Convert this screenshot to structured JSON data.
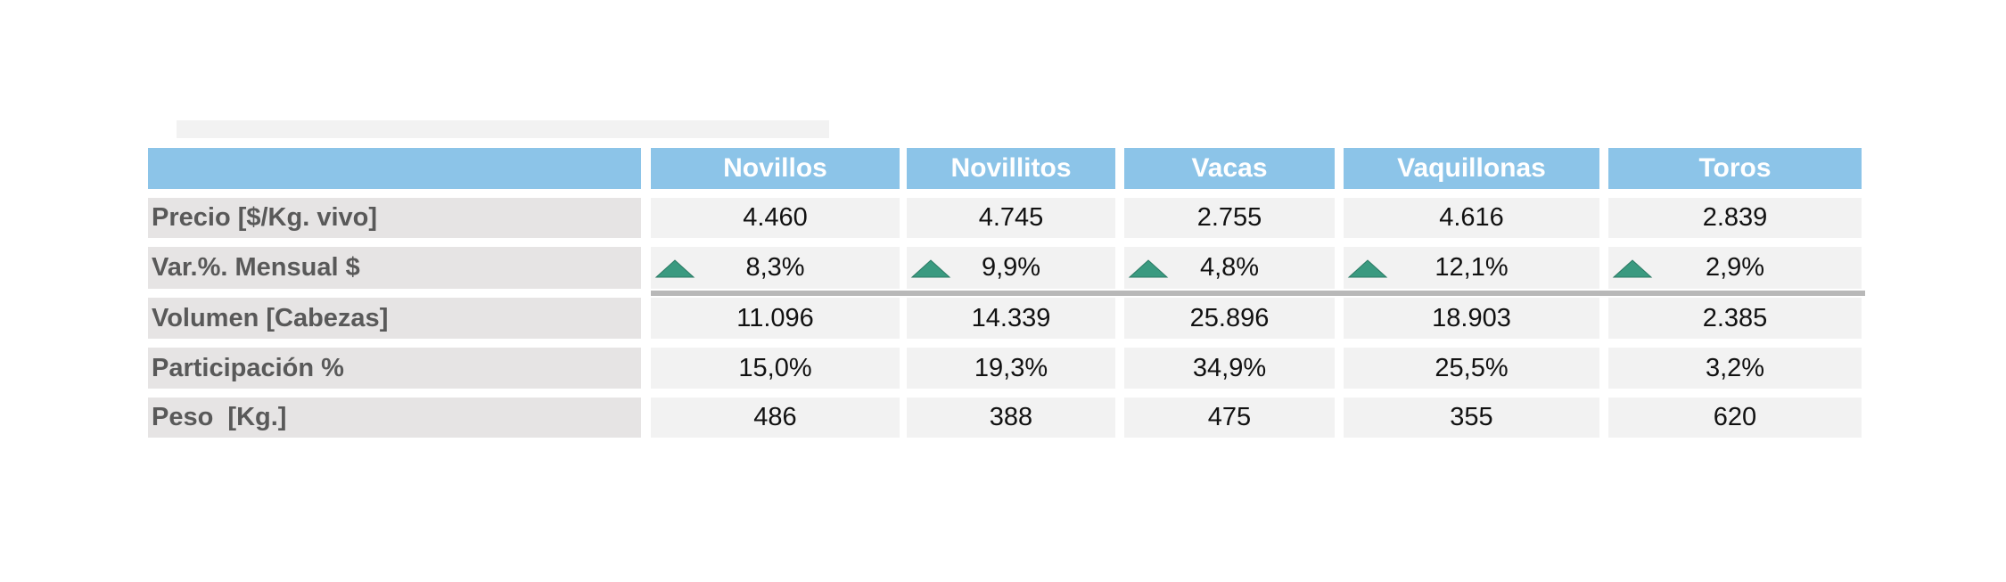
{
  "table": {
    "columns": [
      "Novillos",
      "Novillitos",
      "Vacas",
      "Vaquillonas",
      "Toros"
    ],
    "rows": [
      {
        "label": "Precio [$/Kg. vivo]",
        "cells": [
          "4.460",
          "4.745",
          "2.755",
          "4.616",
          "2.839"
        ]
      },
      {
        "label": "Var.%. Mensual $",
        "cells": [
          "8,3%",
          "9,9%",
          "4,8%",
          "12,1%",
          "2,9%"
        ]
      },
      {
        "label": "Volumen [Cabezas]",
        "cells": [
          "11.096",
          "14.339",
          "25.896",
          "18.903",
          "2.385"
        ]
      },
      {
        "label": "Participación %",
        "cells": [
          "15,0%",
          "19,3%",
          "34,9%",
          "25,5%",
          "3,2%"
        ]
      },
      {
        "label": "Peso  [Kg.]",
        "cells": [
          "486",
          "388",
          "475",
          "355",
          "620"
        ]
      }
    ]
  }
}
